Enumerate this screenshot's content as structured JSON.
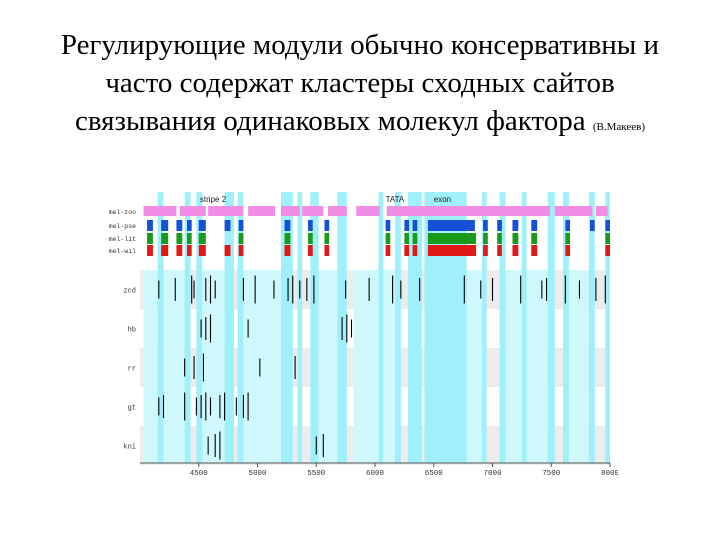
{
  "slide": {
    "title_lines": [
      "Регулирующие модули обычно консервативны и",
      "часто содержат кластеры сходных сайтов",
      "связывания одинаковых молекул фактора"
    ],
    "credit": "(В.Макеев)"
  },
  "colors": {
    "highlight": "#9ff0fa",
    "highlight_light": "#cff8fd",
    "pink": "#f08ee6",
    "blue": "#1450d8",
    "green": "#1a9a1a",
    "red": "#e01818",
    "band_gray": "#ececec",
    "band_white": "#ffffff",
    "site_tick": "#000000"
  },
  "chart_data": {
    "type": "track-diagram",
    "x_range": [
      4000,
      8000
    ],
    "x_ticks": [
      "4500",
      "5000",
      "5500",
      "6000",
      "6500",
      "7000",
      "7500",
      "8000"
    ],
    "annotations": [
      {
        "label": "stripe 2",
        "at": 4510
      },
      {
        "label": "TATA",
        "at": 6090
      },
      {
        "label": "exon",
        "at": 6500
      }
    ],
    "species_tracks": [
      "mel-zoo",
      "mel-pse",
      "mel-lit",
      "mel-wil"
    ],
    "factor_tracks": [
      "zcd",
      "hb",
      "rr",
      "gt",
      "kni"
    ],
    "highlight_regions": [
      [
        4150,
        4200
      ],
      [
        4380,
        4430
      ],
      [
        4480,
        4530
      ],
      [
        4720,
        4800
      ],
      [
        4830,
        4880
      ],
      [
        5200,
        5300
      ],
      [
        5340,
        5380
      ],
      [
        5450,
        5520
      ],
      [
        5680,
        5760
      ],
      [
        6030,
        6070
      ],
      [
        6170,
        6220
      ],
      [
        6280,
        6400
      ],
      [
        6420,
        6780
      ],
      [
        6910,
        6950
      ],
      [
        7060,
        7110
      ],
      [
        7250,
        7290
      ],
      [
        7470,
        7530
      ],
      [
        7600,
        7650
      ],
      [
        7820,
        7870
      ],
      [
        7960,
        8000
      ]
    ],
    "light_regions": [
      [
        4030,
        4150
      ],
      [
        4200,
        4380
      ],
      [
        4530,
        4720
      ],
      [
        4880,
        5200
      ],
      [
        5520,
        5680
      ],
      [
        5820,
        6030
      ],
      [
        6070,
        6170
      ],
      [
        6780,
        6910
      ],
      [
        7110,
        7250
      ],
      [
        7290,
        7470
      ],
      [
        7650,
        7820
      ]
    ],
    "conserved_segments": {
      "mel-zoo": [
        [
          4030,
          4310
        ],
        [
          4340,
          4560
        ],
        [
          4580,
          4880
        ],
        [
          4920,
          5150
        ],
        [
          5200,
          5360
        ],
        [
          5380,
          5560
        ],
        [
          5600,
          5760
        ],
        [
          5840,
          6040
        ],
        [
          6100,
          7490
        ],
        [
          7530,
          7850
        ],
        [
          7880,
          7980
        ]
      ],
      "mel-pse": [
        [
          4060,
          4110
        ],
        [
          4180,
          4240
        ],
        [
          4310,
          4360
        ],
        [
          4400,
          4440
        ],
        [
          4500,
          4560
        ],
        [
          4720,
          4770
        ],
        [
          4840,
          4880
        ],
        [
          5230,
          5280
        ],
        [
          5430,
          5470
        ],
        [
          5570,
          5610
        ],
        [
          6090,
          6130
        ],
        [
          6250,
          6290
        ],
        [
          6320,
          6360
        ],
        [
          6450,
          6850
        ],
        [
          6920,
          6960
        ],
        [
          7040,
          7080
        ],
        [
          7170,
          7220
        ],
        [
          7330,
          7380
        ],
        [
          7620,
          7660
        ],
        [
          7830,
          7870
        ],
        [
          7960,
          8000
        ]
      ],
      "mel-lit": [
        [
          4060,
          4110
        ],
        [
          4180,
          4240
        ],
        [
          4310,
          4360
        ],
        [
          4400,
          4440
        ],
        [
          4500,
          4560
        ],
        [
          4840,
          4880
        ],
        [
          5230,
          5280
        ],
        [
          5430,
          5470
        ],
        [
          5570,
          5610
        ],
        [
          6090,
          6130
        ],
        [
          6250,
          6290
        ],
        [
          6320,
          6360
        ],
        [
          6450,
          6860
        ],
        [
          6920,
          6960
        ],
        [
          7040,
          7080
        ],
        [
          7170,
          7220
        ],
        [
          7330,
          7380
        ],
        [
          7620,
          7660
        ],
        [
          7960,
          8000
        ]
      ],
      "mel-wil": [
        [
          4060,
          4110
        ],
        [
          4180,
          4240
        ],
        [
          4310,
          4360
        ],
        [
          4400,
          4440
        ],
        [
          4500,
          4560
        ],
        [
          4720,
          4770
        ],
        [
          4840,
          4880
        ],
        [
          5230,
          5280
        ],
        [
          5430,
          5470
        ],
        [
          5570,
          5610
        ],
        [
          6090,
          6130
        ],
        [
          6250,
          6290
        ],
        [
          6320,
          6360
        ],
        [
          6450,
          6860
        ],
        [
          6920,
          6960
        ],
        [
          7040,
          7080
        ],
        [
          7170,
          7220
        ],
        [
          7330,
          7380
        ],
        [
          7620,
          7660
        ],
        [
          7960,
          8000
        ]
      ]
    },
    "binding_sites": {
      "zcd": [
        4160,
        4300,
        4440,
        4460,
        4560,
        4600,
        4640,
        4880,
        4980,
        5140,
        5260,
        5300,
        5360,
        5420,
        5480,
        5750,
        5950,
        6150,
        6220,
        6380,
        6760,
        6900,
        7000,
        7240,
        7420,
        7460,
        7620,
        7740,
        7880,
        7960
      ],
      "hb": [
        4520,
        4560,
        4600,
        4920,
        5720,
        5760,
        5800
      ],
      "rr": [
        4380,
        4460,
        4540,
        5020,
        5320
      ],
      "gt": [
        4160,
        4200,
        4380,
        4480,
        4520,
        4560,
        4600,
        4680,
        4720,
        4820,
        4880,
        4920
      ],
      "kni": [
        4580,
        4640,
        4680,
        5500,
        5560
      ]
    }
  }
}
